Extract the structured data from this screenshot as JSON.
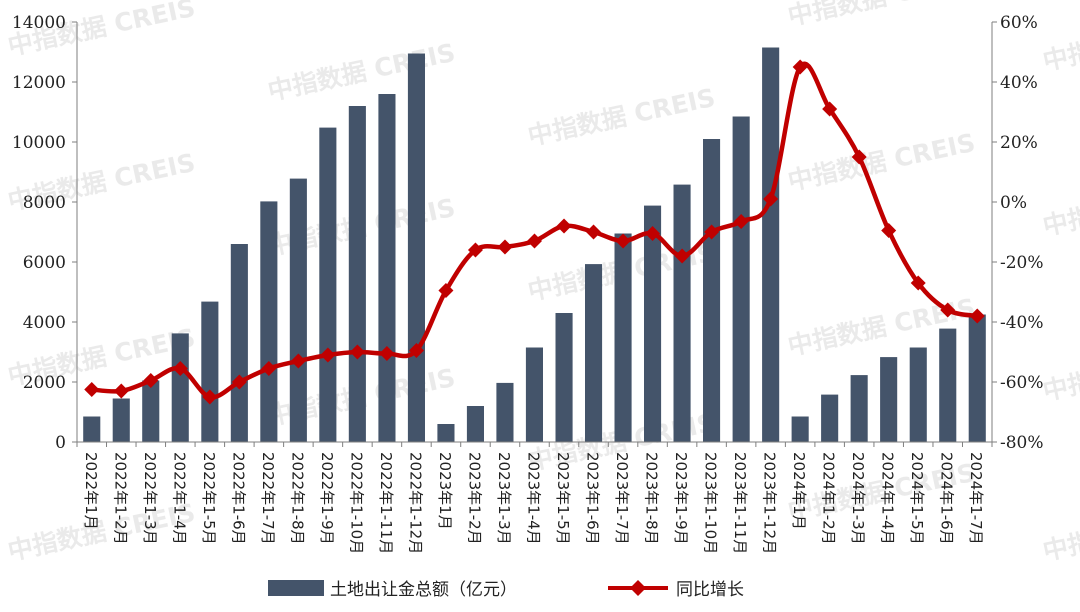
{
  "chart_data": {
    "type": "bar",
    "categories": [
      "2022年1月",
      "2022年1-2月",
      "2022年1-3月",
      "2022年1-4月",
      "2022年1-5月",
      "2022年1-6月",
      "2022年1-7月",
      "2022年1-8月",
      "2022年1-9月",
      "2022年1-10月",
      "2022年1-11月",
      "2022年1-12月",
      "2023年1月",
      "2023年1-2月",
      "2023年1-3月",
      "2023年1-4月",
      "2023年1-5月",
      "2023年1-6月",
      "2023年1-7月",
      "2023年1-8月",
      "2023年1-9月",
      "2023年1-10月",
      "2023年1-11月",
      "2023年1-12月",
      "2024年1月",
      "2024年1-2月",
      "2024年1-3月",
      "2024年1-4月",
      "2024年1-5月",
      "2024年1-6月",
      "2024年1-7月"
    ],
    "series": [
      {
        "name": "土地出让金总额（亿元）",
        "type": "bar",
        "axis": "left",
        "color": "#44546a",
        "values": [
          850,
          1450,
          2050,
          3620,
          4680,
          6600,
          8020,
          8780,
          10480,
          11200,
          11600,
          12950,
          600,
          1200,
          1970,
          3150,
          4300,
          5930,
          6950,
          7880,
          8580,
          10100,
          10850,
          13150,
          850,
          1580,
          2230,
          2830,
          3150,
          3780,
          4250
        ]
      },
      {
        "name": "同比增长",
        "type": "line",
        "axis": "right",
        "color": "#c00000",
        "values": [
          -62.5,
          -63,
          -59.5,
          -55.5,
          -65,
          -60,
          -55.5,
          -53,
          -51,
          -50,
          -50.5,
          -49.5,
          -29.5,
          -16,
          -15,
          -13,
          -8,
          -10,
          -13,
          -10.5,
          -18,
          -10,
          -6.5,
          1,
          45,
          31,
          15,
          -9.5,
          -27,
          -36,
          -38
        ]
      }
    ],
    "yaxis_left": {
      "min": 0,
      "max": 14000,
      "ticks": [
        "0",
        "2000",
        "4000",
        "6000",
        "8000",
        "10000",
        "12000",
        "14000"
      ]
    },
    "yaxis_right": {
      "min": -80,
      "max": 60,
      "ticks": [
        "-80%",
        "-60%",
        "-40%",
        "-20%",
        "0%",
        "20%",
        "40%",
        "60%"
      ]
    },
    "grid": false,
    "legend_position": "bottom",
    "watermark": "中指数据 CREIS"
  },
  "colors": {
    "bar": "#44546a",
    "line": "#c00000",
    "axis": "#7f7f7f"
  }
}
